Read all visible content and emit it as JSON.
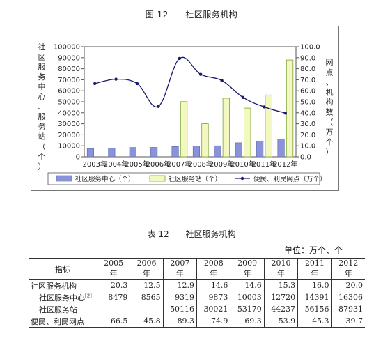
{
  "figure": {
    "number": "图 12",
    "title": "社区服务机构"
  },
  "table": {
    "number": "表 12",
    "title": "社区服务机构",
    "unit": "单位：万个、个",
    "header_indicator": "指标",
    "years": [
      "2005 年",
      "2006 年",
      "2007 年",
      "2008 年",
      "2009 年",
      "2010 年",
      "2011 年",
      "2012 年"
    ],
    "rows": [
      {
        "label": "社区服务机构",
        "values": [
          "20.3",
          "12.5",
          "12.9",
          "14.6",
          "14.6",
          "15.3",
          "16.0",
          "20.0"
        ]
      },
      {
        "label": "社区服务中心",
        "note": "[2]",
        "values": [
          "8479",
          "8565",
          "9319",
          "9873",
          "10003",
          "12720",
          "14391",
          "16306"
        ]
      },
      {
        "label": "社区服务站",
        "values": [
          "",
          "",
          "50116",
          "30021",
          "53170",
          "44237",
          "56156",
          "87931"
        ]
      },
      {
        "label": "便民、利民网点",
        "values": [
          "66.5",
          "45.8",
          "89.3",
          "74.9",
          "69.3",
          "53.9",
          "45.3",
          "39.7"
        ]
      }
    ]
  },
  "chart_data": {
    "type": "bar",
    "categories": [
      "2003年",
      "2004年",
      "2005年",
      "2006年",
      "2007年",
      "2008年",
      "2009年",
      "2010年",
      "2011年",
      "2012年"
    ],
    "ylabel": "社区服务中心、服务站（个）",
    "y2label": "网点、机构数（万个）",
    "ylim": [
      0,
      100000
    ],
    "y2lim": [
      0,
      100
    ],
    "yticks": [
      "0",
      "10000",
      "20000",
      "30000",
      "40000",
      "50000",
      "60000",
      "70000",
      "80000",
      "90000",
      "100000"
    ],
    "y2ticks": [
      "0.0",
      "10.0",
      "20.0",
      "30.0",
      "40.0",
      "50.0",
      "60.0",
      "70.0",
      "80.0",
      "90.0",
      "100.0"
    ],
    "legend_position": "bottom",
    "series": [
      {
        "name": "社区服务中心（个）",
        "type": "bar",
        "axis": "left",
        "color": "#8a93d8",
        "values": [
          7500,
          8000,
          8479,
          8565,
          9319,
          9873,
          10003,
          12720,
          14391,
          16306
        ]
      },
      {
        "name": "社区服务站（个）",
        "type": "bar",
        "axis": "left",
        "color": "#f3f7c0",
        "values": [
          null,
          null,
          null,
          null,
          50116,
          30021,
          53170,
          44237,
          56156,
          87931
        ]
      },
      {
        "name": "便民、利民网点（万个）",
        "type": "line",
        "axis": "right",
        "color": "#1a1a6e",
        "values": [
          66.5,
          70.5,
          66.5,
          45.8,
          89.3,
          74.9,
          69.3,
          53.9,
          45.3,
          39.7
        ]
      }
    ]
  }
}
